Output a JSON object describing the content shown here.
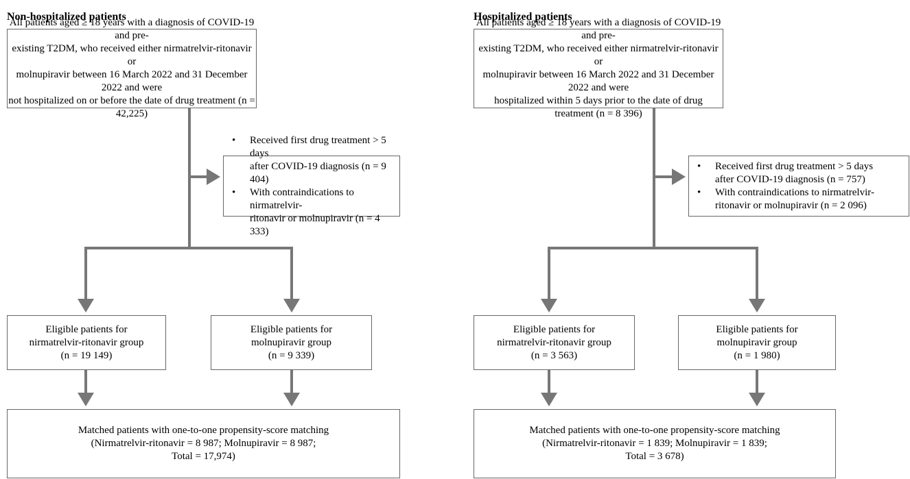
{
  "panels": [
    {
      "title": "Non-hospitalized patients",
      "population": {
        "lines": [
          "All patients aged ≥ 18 years with a diagnosis of COVID-19 and pre-",
          "existing T2DM, who received either nirmatrelvir-ritonavir or",
          "molnupiravir between 16 March 2022 and 31 December 2022 and were",
          "not hospitalized on or before the date of drug treatment (n = 42,225)"
        ]
      },
      "exclusions": [
        {
          "lines": [
            "Received first drug treatment > 5 days",
            "after COVID-19 diagnosis (n = 9 404)"
          ]
        },
        {
          "lines": [
            "With contraindications to nirmatrelvir-",
            "ritonavir or molnupiravir (n = 4 333)"
          ]
        }
      ],
      "groups": [
        {
          "lines": [
            "Eligible patients for",
            "nirmatrelvir-ritonavir group",
            "(n = 19 149)"
          ]
        },
        {
          "lines": [
            "Eligible patients for",
            "molnupiravir group",
            "(n = 9 339)"
          ]
        }
      ],
      "matched": {
        "lines": [
          "Matched patients with one-to-one propensity-score matching",
          "(Nirmatrelvir-ritonavir = 8 987; Molnupiravir = 8 987;",
          "Total = 17,974)"
        ]
      }
    },
    {
      "title": "Hospitalized patients",
      "population": {
        "lines": [
          "All patients aged ≥ 18 years with a diagnosis of COVID-19 and pre-",
          "existing T2DM, who received either nirmatrelvir-ritonavir or",
          "molnupiravir between 16 March 2022 and 31 December 2022 and were",
          "hospitalized within 5 days prior to the date of drug treatment (n = 8 396)"
        ]
      },
      "exclusions": [
        {
          "lines": [
            "Received first drug treatment > 5 days",
            "after COVID-19 diagnosis (n = 757)"
          ]
        },
        {
          "lines": [
            "With contraindications to nirmatrelvir-",
            "ritonavir or molnupiravir (n = 2 096)"
          ]
        }
      ],
      "groups": [
        {
          "lines": [
            "Eligible patients for",
            "nirmatrelvir-ritonavir group",
            "(n = 3 563)"
          ]
        },
        {
          "lines": [
            "Eligible patients for",
            "molnupiravir group",
            "(n = 1 980)"
          ]
        }
      ],
      "matched": {
        "lines": [
          "Matched patients with one-to-one propensity-score matching",
          "(Nirmatrelvir-ritonavir = 1 839; Molnupiravir = 1 839;",
          "Total = 3 678)"
        ]
      }
    }
  ]
}
